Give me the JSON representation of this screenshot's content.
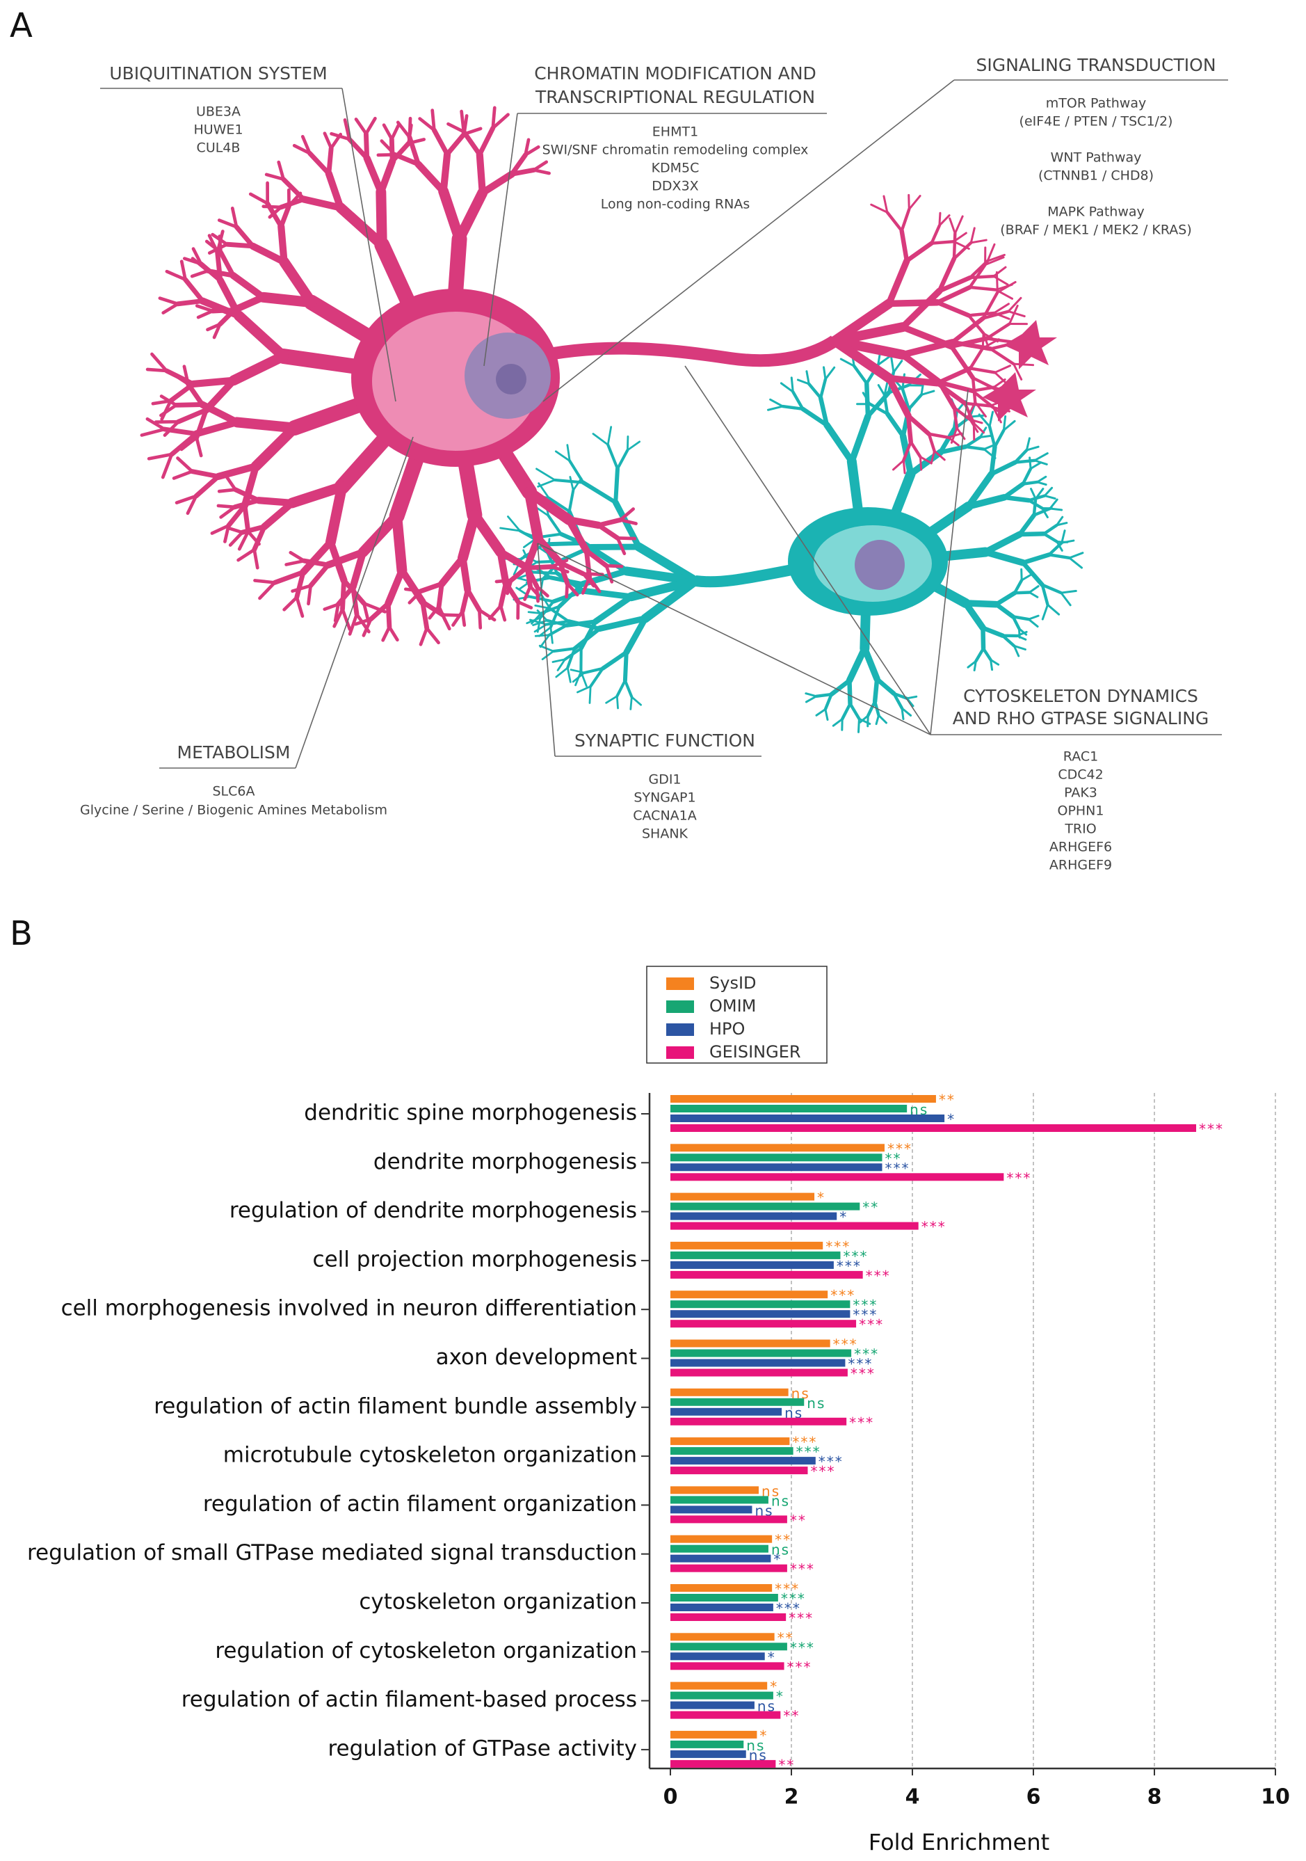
{
  "panel_labels": [
    "A",
    "B"
  ],
  "diagram": {
    "annotations": [
      {
        "title": [
          "UBIQUITINATION SYSTEM"
        ],
        "items": [
          "UBE3A",
          "HUWE1",
          "CUL4B"
        ]
      },
      {
        "title": [
          "CHROMATIN MODIFICATION AND",
          "TRANSCRIPTIONAL REGULATION"
        ],
        "items": [
          "EHMT1",
          "SWI/SNF chromatin remodeling complex",
          "KDM5C",
          "DDX3X",
          "Long non-coding RNAs"
        ]
      },
      {
        "title": [
          "SIGNALING TRANSDUCTION"
        ],
        "items": [
          "mTOR Pathway",
          "(eIF4E / PTEN / TSC1/2)",
          "WNT Pathway",
          "(CTNNB1 / CHD8)",
          "MAPK Pathway",
          "(BRAF / MEK1 / MEK2 / KRAS)"
        ]
      },
      {
        "title": [
          "METABOLISM"
        ],
        "items": [
          "SLC6A",
          "Glycine / Serine / Biogenic Amines Metabolism"
        ]
      },
      {
        "title": [
          "SYNAPTIC FUNCTION"
        ],
        "items": [
          "GDI1",
          "SYNGAP1",
          "CACNA1A",
          "SHANK"
        ]
      },
      {
        "title": [
          "CYTOSKELETON DYNAMICS",
          "AND RHO GTPASE SIGNALING"
        ],
        "items": [
          "RAC1",
          "CDC42",
          "PAK3",
          "OPHN1",
          "TRIO",
          "ARHGEF6",
          "ARHGEF9"
        ]
      }
    ]
  },
  "chart_data": {
    "type": "bar",
    "orientation": "horizontal",
    "categories": [
      "dendritic spine morphogenesis",
      "dendrite morphogenesis",
      "regulation of dendrite morphogenesis",
      "cell projection morphogenesis",
      "cell morphogenesis involved in neuron differentiation",
      "axon development",
      "regulation of actin filament bundle assembly",
      "microtubule cytoskeleton organization",
      "regulation of actin filament organization",
      "regulation of small GTPase mediated signal transduction",
      "cytoskeleton organization",
      "regulation of cytoskeleton organization",
      "regulation of actin filament-based process",
      "regulation of GTPase activity"
    ],
    "series": [
      {
        "name": "SysID",
        "color": "#f5821f",
        "values": [
          4.39,
          3.54,
          2.38,
          2.52,
          2.6,
          2.64,
          1.95,
          1.97,
          1.46,
          1.68,
          1.68,
          1.72,
          1.6,
          1.43
        ],
        "significance": [
          "**",
          "***",
          "*",
          "***",
          "***",
          "***",
          "ns",
          "***",
          "ns",
          "**",
          "***",
          "**",
          "*",
          "*"
        ]
      },
      {
        "name": "OMIM",
        "color": "#17a673",
        "values": [
          3.91,
          3.5,
          3.13,
          2.81,
          2.97,
          2.99,
          2.21,
          2.03,
          1.62,
          1.62,
          1.78,
          1.93,
          1.7,
          1.21
        ],
        "significance": [
          "ns",
          "**",
          "**",
          "***",
          "***",
          "***",
          "ns",
          "***",
          "ns",
          "ns",
          "***",
          "***",
          "*",
          "ns"
        ]
      },
      {
        "name": "HPO",
        "color": "#2c55a3",
        "values": [
          4.53,
          3.5,
          2.75,
          2.7,
          2.97,
          2.89,
          1.84,
          2.4,
          1.35,
          1.66,
          1.7,
          1.56,
          1.39,
          1.25
        ],
        "significance": [
          "*",
          "***",
          "*",
          "***",
          "***",
          "***",
          "ns",
          "***",
          "ns",
          "*",
          "***",
          "*",
          "ns",
          "ns"
        ]
      },
      {
        "name": "GEISINGER",
        "color": "#e8137a",
        "values": [
          8.69,
          5.51,
          4.1,
          3.18,
          3.07,
          2.93,
          2.91,
          2.27,
          1.93,
          1.93,
          1.91,
          1.88,
          1.82,
          1.74
        ],
        "significance": [
          "***",
          "***",
          "***",
          "***",
          "***",
          "***",
          "***",
          "***",
          "**",
          "***",
          "***",
          "***",
          "**",
          "**"
        ]
      }
    ],
    "xlim": [
      0,
      10
    ],
    "xticks": [
      0,
      2,
      4,
      6,
      8,
      10
    ],
    "xlabel": "Fold Enrichment",
    "grid": true
  }
}
